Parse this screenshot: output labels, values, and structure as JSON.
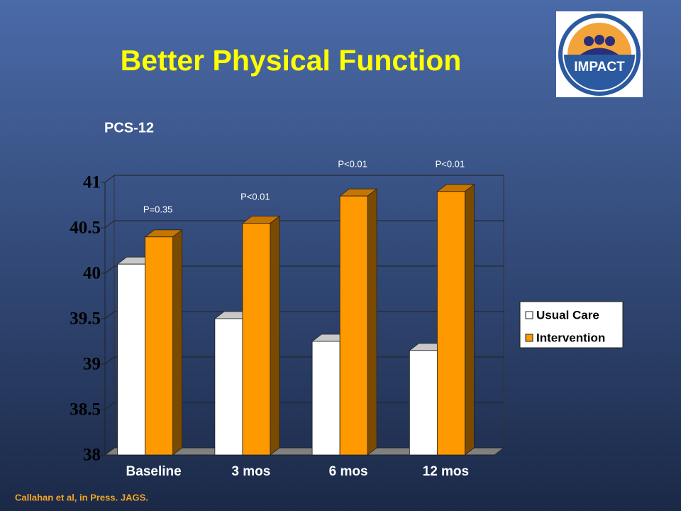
{
  "logo_text": "IMPACT",
  "chart_data": {
    "type": "bar3d",
    "title": "Better Physical Function",
    "subtitle": "PCS-12",
    "categories": [
      "Baseline",
      "3 mos",
      "6 mos",
      "12 mos"
    ],
    "series": [
      {
        "name": "Usual Care",
        "color": "#ffffff",
        "values": [
          40.1,
          39.5,
          39.25,
          39.15
        ]
      },
      {
        "name": "Intervention",
        "color": "#ff9900",
        "values": [
          40.4,
          40.55,
          40.85,
          40.9
        ]
      }
    ],
    "ylim": [
      38,
      41
    ],
    "yticks": [
      38,
      38.5,
      39,
      39.5,
      40,
      40.5,
      41
    ],
    "grid": true,
    "legend": "right",
    "annotations": [
      "P=0.35",
      "P<0.01",
      "P<0.01",
      "P<0.01"
    ],
    "source": "Callahan et al, in Press. JAGS."
  }
}
